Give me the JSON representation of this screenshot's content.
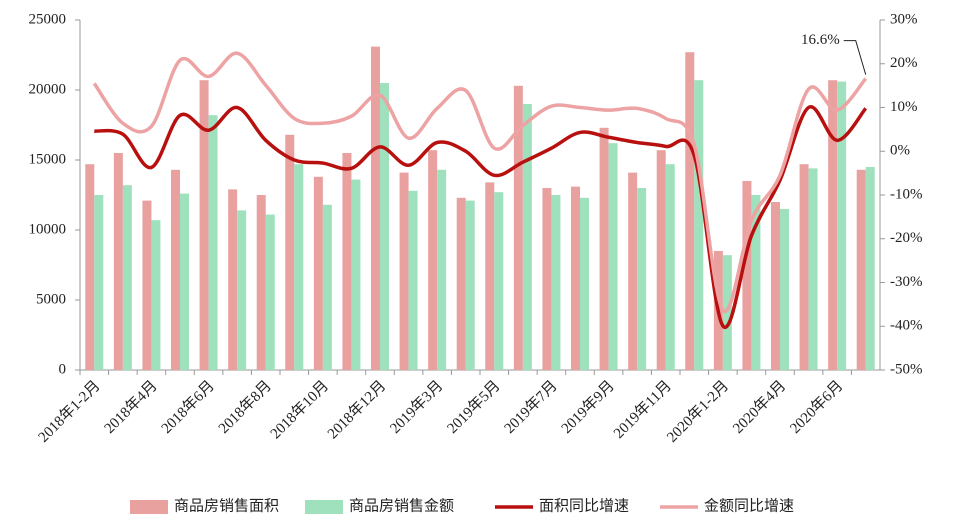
{
  "chart_data": {
    "type": "bar",
    "categories": [
      "2018年1-2月",
      null,
      "2018年4月",
      null,
      "2018年6月",
      null,
      "2018年8月",
      null,
      "2018年10月",
      null,
      "2018年12月",
      null,
      "2019年3月",
      null,
      "2019年5月",
      null,
      "2019年7月",
      null,
      "2019年9月",
      null,
      "2019年11月",
      null,
      "2020年1-2月",
      null,
      "2020年4月",
      null,
      "2020年6月",
      null
    ],
    "series": [
      {
        "name": "商品房销售面积",
        "type": "bar",
        "color": "#e8a19f",
        "values": [
          14700,
          15500,
          12100,
          14300,
          20700,
          12900,
          12500,
          16800,
          13800,
          15500,
          23100,
          14100,
          15700,
          12300,
          13400,
          20300,
          13000,
          13100,
          17300,
          14100,
          15700,
          22700,
          8500,
          13500,
          12000,
          14700,
          20700,
          14300
        ]
      },
      {
        "name": "商品房销售金额",
        "type": "bar",
        "color": "#9fe0bd",
        "values": [
          12500,
          13200,
          10700,
          12600,
          18200,
          11400,
          11100,
          14700,
          11800,
          13600,
          20500,
          12800,
          14300,
          12100,
          12700,
          19000,
          12500,
          12300,
          16200,
          13000,
          14700,
          20700,
          8200,
          12500,
          11500,
          14400,
          20600,
          14500
        ]
      },
      {
        "name": "面积同比增速",
        "type": "line",
        "axis": "y2",
        "color": "#b80f0f",
        "values": [
          4.6,
          3.9,
          -3.7,
          8.2,
          4.8,
          10,
          2.5,
          -2,
          -2.7,
          -3.9,
          1,
          -3.2,
          2,
          0,
          -5.5,
          -2.5,
          0.7,
          4.3,
          3.2,
          2,
          1.1,
          -1,
          -39.9,
          -19.3,
          -6.6,
          10,
          2.5,
          9.8
        ]
      },
      {
        "name": "金额同比增速",
        "type": "line",
        "axis": "y2",
        "color": "#eda3a3",
        "values": [
          15.5,
          6.4,
          5.7,
          20.8,
          17.1,
          22.4,
          15.1,
          7.5,
          6.4,
          8,
          12.8,
          3,
          9.8,
          13.9,
          0.7,
          5.9,
          10.3,
          10,
          9.4,
          9.8,
          7.5,
          1.4,
          -36.3,
          -15.8,
          -5.5,
          14.2,
          9.4,
          16.6
        ],
        "value_labels": [
          null,
          null,
          null,
          null,
          null,
          null,
          null,
          null,
          null,
          null,
          null,
          null,
          null,
          null,
          null,
          null,
          null,
          null,
          null,
          null,
          null,
          null,
          null,
          null,
          null,
          null,
          null,
          "16.6%"
        ]
      }
    ],
    "ylim": [
      0,
      25000
    ],
    "yticks": [
      0,
      5000,
      10000,
      15000,
      20000,
      25000
    ],
    "y2lim": [
      -50,
      30
    ],
    "y2ticks": [
      {
        "value": -50,
        "label": "-50%"
      },
      {
        "value": -40,
        "label": "-40%"
      },
      {
        "value": -30,
        "label": "-30%"
      },
      {
        "value": -20,
        "label": "-20%"
      },
      {
        "value": -10,
        "label": "-10%"
      },
      {
        "value": 0,
        "label": "0%"
      },
      {
        "value": 10,
        "label": "10%"
      },
      {
        "value": 20,
        "label": "20%"
      },
      {
        "value": 30,
        "label": "30%"
      }
    ],
    "legend": "bottom"
  }
}
